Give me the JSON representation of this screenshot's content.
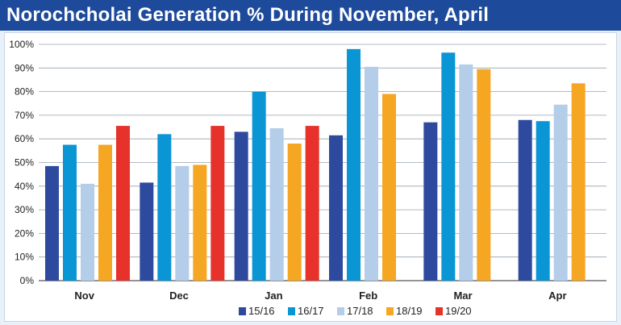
{
  "header": {
    "title": "Norochcholai Generation % During November, April"
  },
  "colors": {
    "banner_bg": "#1d4a9a",
    "page_bg": "#e8f1f9"
  },
  "chart_data": {
    "type": "bar",
    "title": "Norochcholai Generation % During November, April",
    "xlabel": "",
    "ylabel": "",
    "ylim": [
      0,
      100
    ],
    "y_ticks": [
      "0%",
      "10%",
      "20%",
      "30%",
      "40%",
      "50%",
      "60%",
      "70%",
      "80%",
      "90%",
      "100%"
    ],
    "grid": true,
    "legend_position": "bottom",
    "categories": [
      "Nov",
      "Dec",
      "Jan",
      "Feb",
      "Mar",
      "Apr"
    ],
    "series": [
      {
        "name": "15/16",
        "color": "#2e4a9e",
        "values": [
          48.5,
          41.5,
          63,
          61.5,
          67,
          68
        ]
      },
      {
        "name": "16/17",
        "color": "#0a95d4",
        "values": [
          57.5,
          62,
          80,
          98,
          96.5,
          67.5
        ]
      },
      {
        "name": "17/18",
        "color": "#b4cde9",
        "values": [
          41,
          48.5,
          64.5,
          90.5,
          91.5,
          74.5
        ]
      },
      {
        "name": "18/19",
        "color": "#f5a623",
        "values": [
          57.5,
          49,
          58,
          79,
          89.5,
          83.5
        ]
      },
      {
        "name": "19/20",
        "color": "#e6322a",
        "values": [
          65.5,
          65.5,
          65.5,
          null,
          null,
          null
        ]
      }
    ]
  }
}
